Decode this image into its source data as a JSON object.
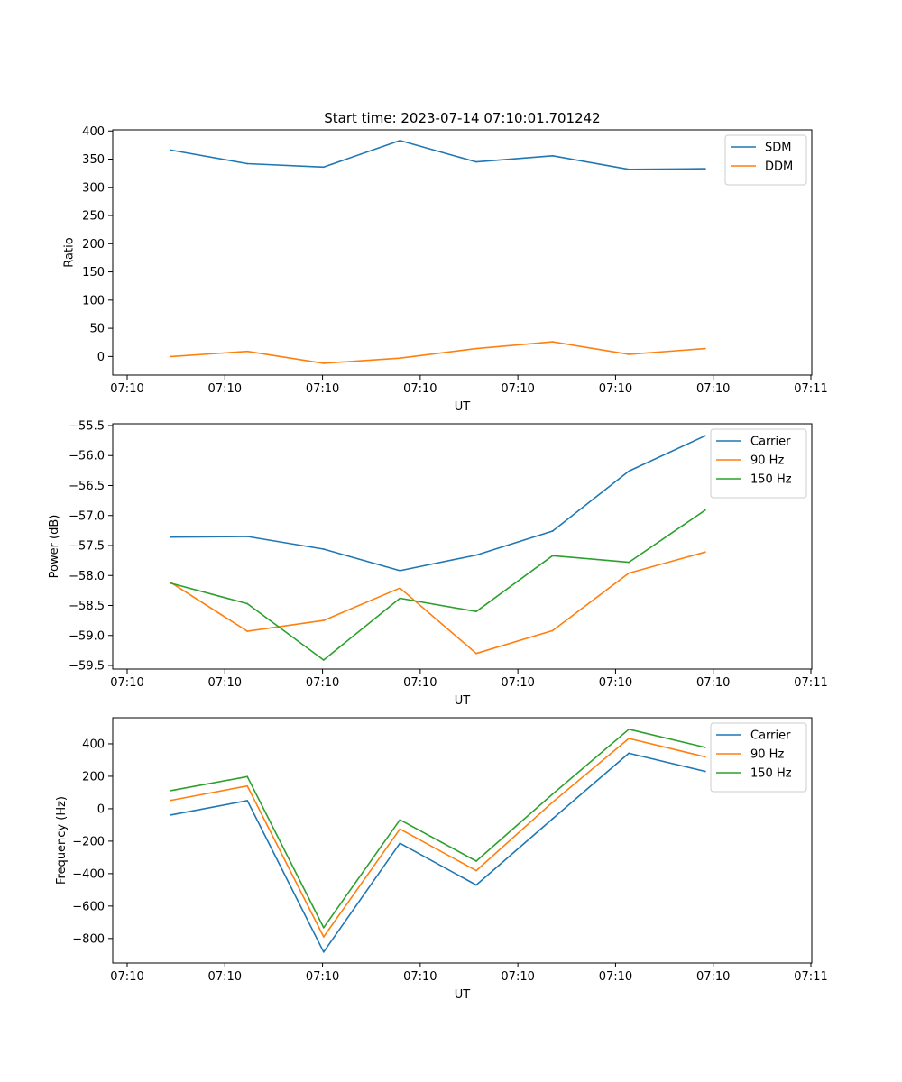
{
  "figure_title": "Start time: 2023-07-14 07:10:01.701242",
  "colors": {
    "c0": "#1f77b4",
    "c1": "#ff7f0e",
    "c2": "#2ca02c"
  },
  "chart_data": [
    {
      "type": "line",
      "name": "ratio",
      "title": "Start time: 2023-07-14 07:10:01.701242",
      "xlabel": "UT",
      "ylabel": "Ratio",
      "xticklabels": [
        "07:10",
        "07:10",
        "07:10",
        "07:10",
        "07:10",
        "07:10",
        "07:10",
        "07:11"
      ],
      "xlim": [
        -0.5,
        5.5
      ],
      "x": [
        0,
        0.655,
        1.31,
        1.965,
        2.62,
        3.275,
        3.93,
        4.585
      ],
      "ylim": [
        -33,
        402
      ],
      "yticks": [
        0,
        50,
        100,
        150,
        200,
        250,
        300,
        350,
        400
      ],
      "yticklabels": [
        "0",
        "50",
        "100",
        "150",
        "200",
        "250",
        "300",
        "350",
        "400"
      ],
      "legend": "top-right",
      "series": [
        {
          "name": "SDM",
          "color": "#1f77b4",
          "values": [
            366,
            342,
            336,
            383,
            345,
            356,
            332,
            333
          ]
        },
        {
          "name": "DDM",
          "color": "#ff7f0e",
          "values": [
            0,
            9,
            -12,
            -3,
            14,
            26,
            4,
            14
          ]
        }
      ]
    },
    {
      "type": "line",
      "name": "power",
      "xlabel": "UT",
      "ylabel": "Power (dB)",
      "xticklabels": [
        "07:10",
        "07:10",
        "07:10",
        "07:10",
        "07:10",
        "07:10",
        "07:10",
        "07:11"
      ],
      "xlim": [
        -0.5,
        5.5
      ],
      "x": [
        0,
        0.655,
        1.31,
        1.965,
        2.62,
        3.275,
        3.93,
        4.585
      ],
      "ylim": [
        -59.56,
        -55.47
      ],
      "yticks": [
        -59.5,
        -59.0,
        -58.5,
        -58.0,
        -57.5,
        -57.0,
        -56.5,
        -56.0,
        -55.5
      ],
      "yticklabels": [
        "−59.5",
        "−59.0",
        "−58.5",
        "−58.0",
        "−57.5",
        "−57.0",
        "−56.5",
        "−56.0",
        "−55.5"
      ],
      "legend": "top-right",
      "series": [
        {
          "name": "Carrier",
          "color": "#1f77b4",
          "values": [
            -57.36,
            -57.35,
            -57.56,
            -57.92,
            -57.66,
            -57.26,
            -56.26,
            -55.67
          ]
        },
        {
          "name": "90 Hz",
          "color": "#ff7f0e",
          "values": [
            -58.12,
            -58.93,
            -58.75,
            -58.21,
            -59.3,
            -58.92,
            -57.96,
            -57.61
          ]
        },
        {
          "name": "150 Hz",
          "color": "#2ca02c",
          "values": [
            -58.13,
            -58.47,
            -59.41,
            -58.38,
            -58.6,
            -57.67,
            -57.78,
            -56.91
          ]
        }
      ]
    },
    {
      "type": "line",
      "name": "frequency",
      "xlabel": "UT",
      "ylabel": "Frequency (Hz)",
      "xticklabels": [
        "07:10",
        "07:10",
        "07:10",
        "07:10",
        "07:10",
        "07:10",
        "07:10",
        "07:11"
      ],
      "xlim": [
        -0.5,
        5.5
      ],
      "x": [
        0,
        0.655,
        1.31,
        1.965,
        2.62,
        3.275,
        3.93,
        4.585
      ],
      "ylim": [
        -951,
        561
      ],
      "yticks": [
        -800,
        -600,
        -400,
        -200,
        0,
        200,
        400
      ],
      "yticklabels": [
        "−800",
        "−600",
        "−400",
        "−200",
        "0",
        "200",
        "400"
      ],
      "legend": "top-right",
      "series": [
        {
          "name": "Carrier",
          "color": "#1f77b4",
          "values": [
            -38,
            50,
            -883,
            -213,
            -470,
            -62,
            342,
            230
          ]
        },
        {
          "name": "90 Hz",
          "color": "#ff7f0e",
          "values": [
            52,
            140,
            -790,
            -125,
            -382,
            40,
            433,
            320
          ]
        },
        {
          "name": "150 Hz",
          "color": "#2ca02c",
          "values": [
            112,
            198,
            -733,
            -68,
            -323,
            90,
            490,
            378
          ]
        }
      ]
    }
  ]
}
